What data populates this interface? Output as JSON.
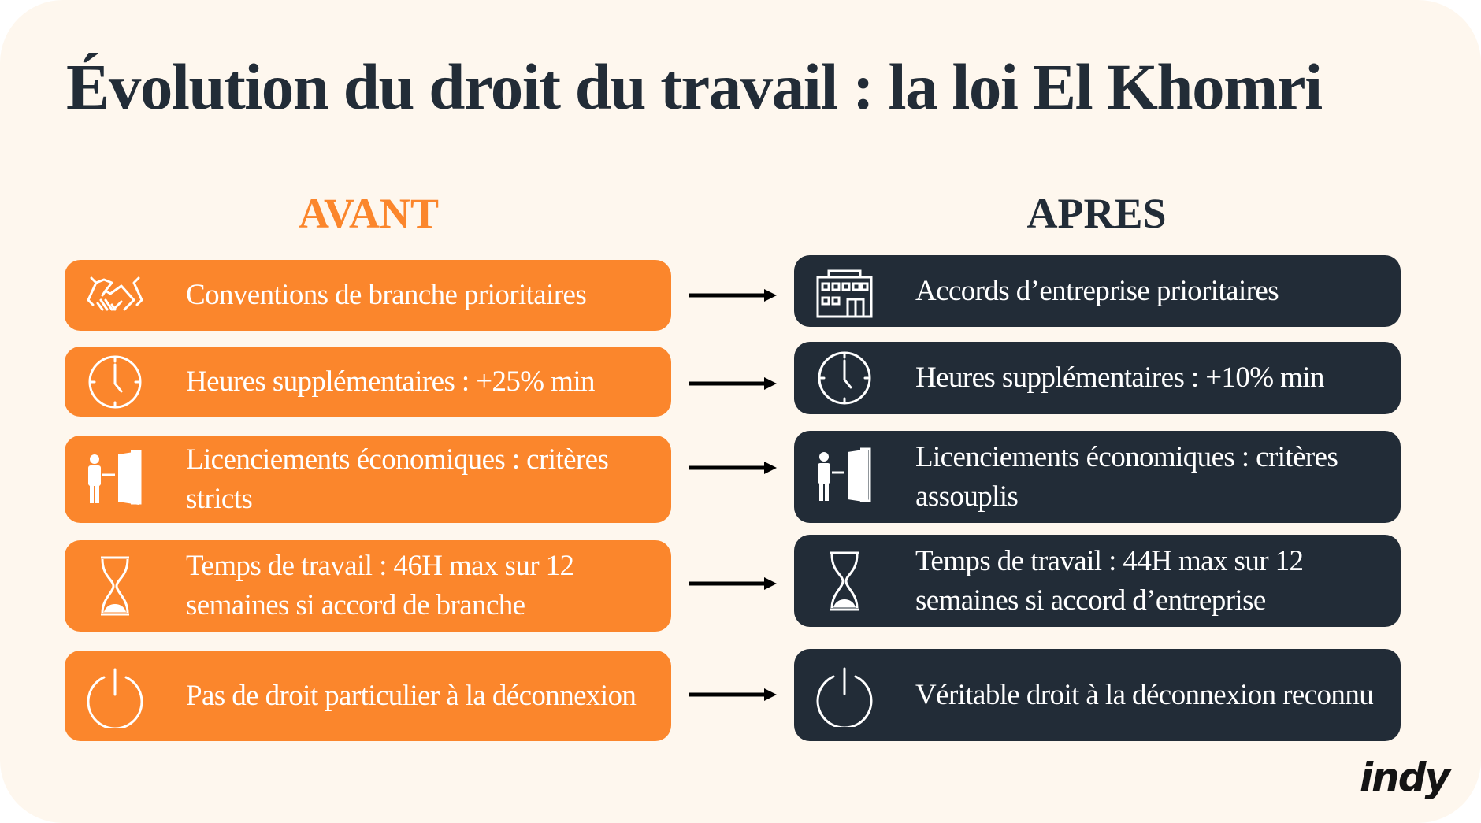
{
  "title": "Évolution du droit du travail : la loi El Khomri",
  "columns": {
    "before": "AVANT",
    "after": "APRES"
  },
  "colors": {
    "before": "#fb862c",
    "after": "#222c37",
    "background": "#fef7ee"
  },
  "rows": [
    {
      "icon": "handshake-icon",
      "before": "Conventions de branche prioritaires",
      "after_icon": "building-icon",
      "after": "Accords d’entreprise prioritaires"
    },
    {
      "icon": "clock-icon",
      "before": "Heures supplémentaires : +25% min",
      "after_icon": "clock-icon",
      "after": "Heures supplémentaires : +10% min"
    },
    {
      "icon": "exit-door-icon",
      "before": "Licenciements économiques : critères stricts",
      "after_icon": "exit-door-icon",
      "after": "Licenciements économiques : critères assouplis"
    },
    {
      "icon": "hourglass-icon",
      "before": "Temps de travail : 46H max sur 12 semaines si accord de branche",
      "after_icon": "hourglass-icon",
      "after": "Temps de travail : 44H max sur 12 semaines si accord d’entreprise"
    },
    {
      "icon": "power-icon",
      "before": "Pas de droit particulier à  la déconnexion",
      "after_icon": "power-icon",
      "after": "Véritable droit à la déconnexion reconnu"
    }
  ],
  "logo": "indy"
}
